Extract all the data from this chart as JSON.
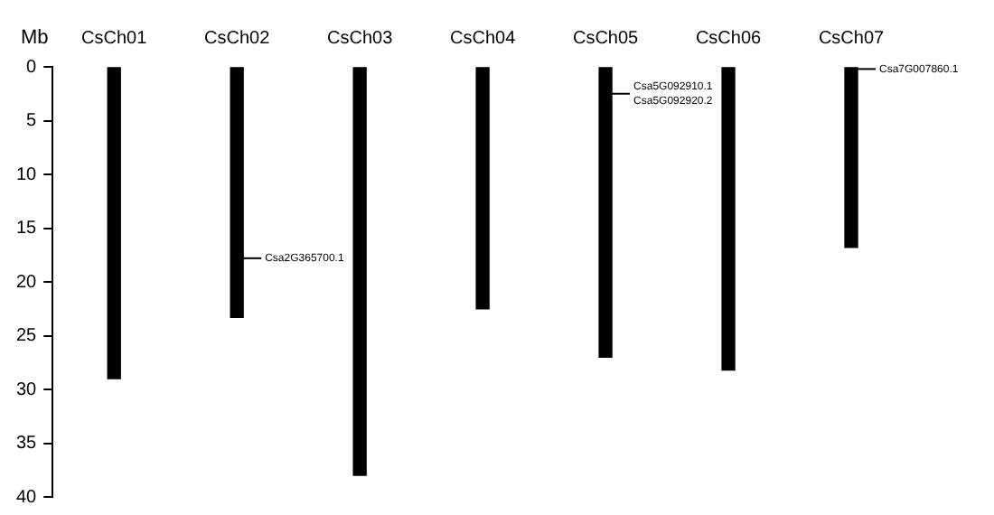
{
  "chart_data": {
    "type": "bar",
    "ylabel": "Mb",
    "categories": [
      "CsCh01",
      "CsCh02",
      "CsCh03",
      "CsCh04",
      "CsCh05",
      "CsCh06",
      "CsCh07"
    ],
    "values": [
      29.0,
      23.3,
      38.0,
      22.5,
      27.0,
      28.2,
      16.8
    ],
    "color": "#000000",
    "ylim": [
      40,
      0
    ],
    "yticks": [
      0,
      5,
      10,
      15,
      20,
      25,
      30,
      35,
      40
    ],
    "grid": false,
    "legend": false,
    "annotations": [
      {
        "text": "Csa2G365700.1",
        "x": "CsCh02",
        "y": 17.8
      },
      {
        "text": "Csa5G092910.1",
        "x": "CsCh05",
        "y": 2.5
      },
      {
        "text": "Csa5G092920.2",
        "x": "CsCh05",
        "y": 2.5
      },
      {
        "text": "Csa7G007860.1",
        "x": "CsCh07",
        "y": 0.2
      }
    ]
  }
}
